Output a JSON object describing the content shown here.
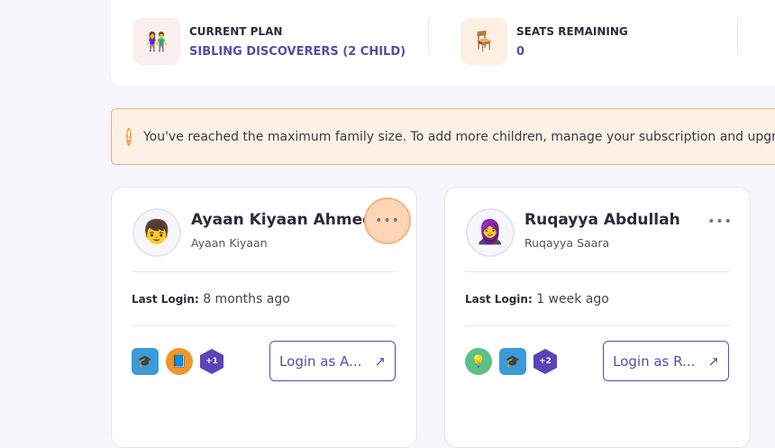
{
  "stats": {
    "plan_label": "CURRENT PLAN",
    "plan_value": "SIBLING DISCOVERERS (2 CHILD)",
    "seats_label": "SEATS REMAINING",
    "seats_value": "0"
  },
  "alert": {
    "icon": "exclamation-icon",
    "text": "You've reached the maximum family size. To add more children, manage your subscription and upgrade"
  },
  "children": [
    {
      "name": "Ayaan Kiyaan Ahmed",
      "username": "Ayaan Kiyaan",
      "last_login_label": "Last Login:",
      "last_login": "8 months ago",
      "extra_badges": "+1",
      "login_button": "Login as A...",
      "arrow": "↗"
    },
    {
      "name": "Ruqayya Abdullah",
      "username": "Ruqayya Saara",
      "last_login_label": "Last Login:",
      "last_login": "1 week ago",
      "extra_badges": "+2",
      "login_button": "Login as R...",
      "arrow": "↗"
    }
  ]
}
